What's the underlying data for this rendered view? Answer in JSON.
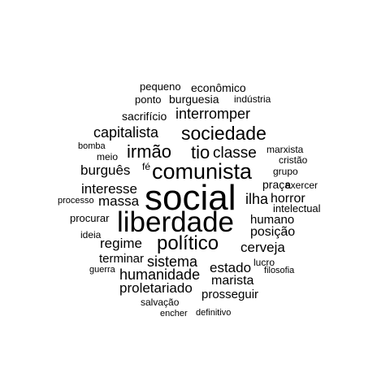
{
  "word_cloud": {
    "text_color": "#000000",
    "background_color": "#ffffff",
    "words": [
      {
        "text": "social"
      },
      {
        "text": "liberdade"
      },
      {
        "text": "comunista"
      },
      {
        "text": "político"
      },
      {
        "text": "sociedade"
      },
      {
        "text": "irmão"
      },
      {
        "text": "tio"
      },
      {
        "text": "classe"
      },
      {
        "text": "capitalista"
      },
      {
        "text": "interromper"
      },
      {
        "text": "burguês"
      },
      {
        "text": "sistema"
      },
      {
        "text": "humanidade"
      },
      {
        "text": "interesse"
      },
      {
        "text": "massa"
      },
      {
        "text": "regime"
      },
      {
        "text": "proletariado"
      },
      {
        "text": "ilha"
      },
      {
        "text": "horror"
      },
      {
        "text": "humano"
      },
      {
        "text": "posição"
      },
      {
        "text": "cerveja"
      },
      {
        "text": "estado"
      },
      {
        "text": "marista"
      },
      {
        "text": "prosseguir"
      },
      {
        "text": "terminar"
      },
      {
        "text": "sacrifício"
      },
      {
        "text": "burguesia"
      },
      {
        "text": "econômico"
      },
      {
        "text": "pequeno"
      },
      {
        "text": "ponto"
      },
      {
        "text": "indústria"
      },
      {
        "text": "marxista"
      },
      {
        "text": "cristão"
      },
      {
        "text": "grupo"
      },
      {
        "text": "praça"
      },
      {
        "text": "exercer"
      },
      {
        "text": "intelectual"
      },
      {
        "text": "procurar"
      },
      {
        "text": "ideia"
      },
      {
        "text": "lucro"
      },
      {
        "text": "filosofia"
      },
      {
        "text": "guerra"
      },
      {
        "text": "salvação"
      },
      {
        "text": "encher"
      },
      {
        "text": "definitivo"
      },
      {
        "text": "bomba"
      },
      {
        "text": "meio"
      },
      {
        "text": "fé"
      },
      {
        "text": "processo"
      }
    ]
  }
}
